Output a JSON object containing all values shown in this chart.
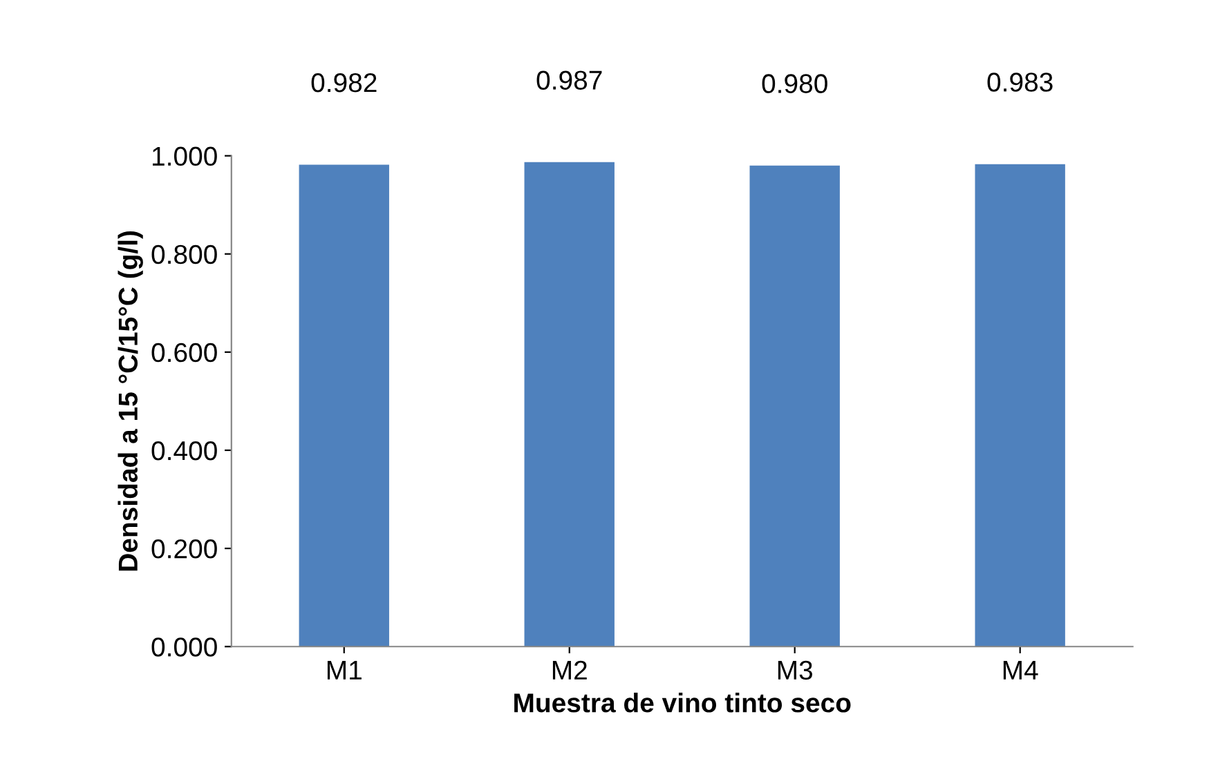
{
  "chart_data": {
    "type": "bar",
    "xlabel": "Muestra de vino tinto seco",
    "ylabel": "Densidad a 15 °C/15°C (g/l)",
    "categories": [
      "M1",
      "M2",
      "M3",
      "M4"
    ],
    "values": [
      0.982,
      0.987,
      0.98,
      0.983
    ],
    "value_labels": [
      "0.982",
      "0.987",
      "0.980",
      "0.983"
    ],
    "color": "#4f81bd",
    "ylim": [
      0,
      1.0
    ],
    "yticks": [
      {
        "value": 0,
        "label": "0.000"
      },
      {
        "value": 0.2,
        "label": "0.200"
      },
      {
        "value": 0.4,
        "label": "0.400"
      },
      {
        "value": 0.6,
        "label": "0.600"
      },
      {
        "value": 0.8,
        "label": "0.800"
      },
      {
        "value": 1.0,
        "label": "1.000"
      }
    ],
    "grid": false,
    "legend": false
  }
}
